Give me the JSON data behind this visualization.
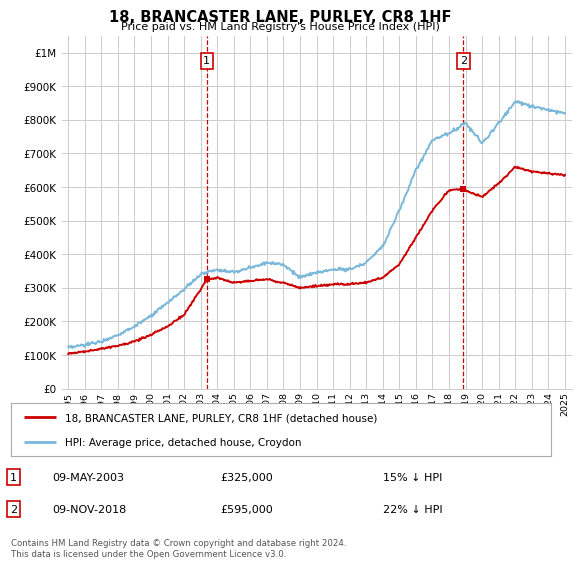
{
  "title": "18, BRANCASTER LANE, PURLEY, CR8 1HF",
  "subtitle": "Price paid vs. HM Land Registry's House Price Index (HPI)",
  "hpi_label": "HPI: Average price, detached house, Croydon",
  "property_label": "18, BRANCASTER LANE, PURLEY, CR8 1HF (detached house)",
  "footnote": "Contains HM Land Registry data © Crown copyright and database right 2024.\nThis data is licensed under the Open Government Licence v3.0.",
  "sale1": {
    "date": "09-MAY-2003",
    "price": 325000,
    "pct": "15% ↓ HPI"
  },
  "sale2": {
    "date": "09-NOV-2018",
    "price": 595000,
    "pct": "22% ↓ HPI"
  },
  "hpi_color": "#7ab8d9",
  "property_color": "#cc0000",
  "background_color": "#ffffff",
  "grid_color": "#cccccc",
  "ylim": [
    0,
    1050000
  ],
  "yticks": [
    0,
    100000,
    200000,
    300000,
    400000,
    500000,
    600000,
    700000,
    800000,
    900000,
    1000000
  ],
  "ytick_labels": [
    "£0",
    "£100K",
    "£200K",
    "£300K",
    "£400K",
    "£500K",
    "£600K",
    "£700K",
    "£800K",
    "£900K",
    "£1M"
  ],
  "sale1_x": 2003.37,
  "sale2_x": 2018.87,
  "hpi_knots": [
    1995,
    1996,
    1997,
    1998,
    1999,
    2000,
    2001,
    2002,
    2003,
    2004,
    2005,
    2006,
    2007,
    2008,
    2009,
    2010,
    2011,
    2012,
    2013,
    2014,
    2015,
    2016,
    2017,
    2018,
    2019,
    2020,
    2021,
    2022,
    2023,
    2024,
    2025
  ],
  "hpi_vals": [
    120000,
    130000,
    140000,
    160000,
    185000,
    215000,
    255000,
    295000,
    340000,
    355000,
    345000,
    360000,
    375000,
    370000,
    330000,
    345000,
    355000,
    355000,
    375000,
    425000,
    530000,
    650000,
    740000,
    760000,
    790000,
    730000,
    790000,
    855000,
    840000,
    830000,
    820000
  ],
  "prop_knots": [
    1995,
    1996,
    1997,
    1998,
    1999,
    2000,
    2001,
    2002,
    2003,
    2003.37,
    2004,
    2005,
    2006,
    2007,
    2008,
    2009,
    2010,
    2011,
    2012,
    2013,
    2014,
    2015,
    2016,
    2017,
    2018,
    2018.87,
    2019,
    2020,
    2021,
    2022,
    2023,
    2024,
    2025
  ],
  "prop_vals": [
    105000,
    110000,
    118000,
    128000,
    140000,
    160000,
    185000,
    220000,
    295000,
    325000,
    330000,
    315000,
    320000,
    325000,
    315000,
    300000,
    305000,
    310000,
    310000,
    315000,
    330000,
    370000,
    450000,
    530000,
    590000,
    595000,
    590000,
    570000,
    610000,
    660000,
    645000,
    640000,
    635000
  ]
}
